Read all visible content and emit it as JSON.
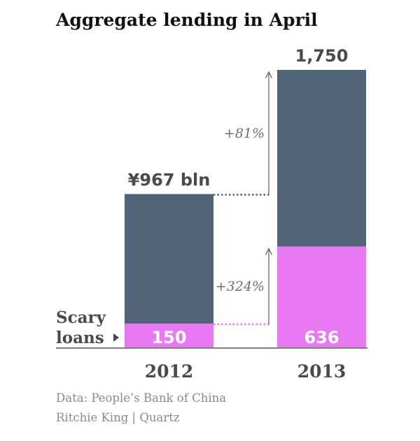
{
  "title": "Aggregate lending in April",
  "chart_data": {
    "type": "bar",
    "stacked": true,
    "categories": [
      "2012",
      "2013"
    ],
    "series": [
      {
        "name": "Scary loans",
        "values": [
          150,
          636
        ],
        "color": "#e879f2"
      },
      {
        "name": "",
        "values": [
          817,
          1114
        ],
        "color": "#516377"
      }
    ],
    "totals": [
      967,
      1750
    ],
    "total_labels": [
      "¥967 bln",
      "1,750"
    ],
    "segment_labels": [
      "150",
      "636"
    ],
    "series_label": "Scary loans",
    "annotations": [
      {
        "text": "+81%",
        "series": "total"
      },
      {
        "text": "+324%",
        "series": "Scary loans"
      }
    ],
    "ylim": [
      0,
      1750
    ],
    "grid": false,
    "legend": "none"
  },
  "source": "Data: People’s Bank of China",
  "byline": "Ritchie King | Quartz"
}
